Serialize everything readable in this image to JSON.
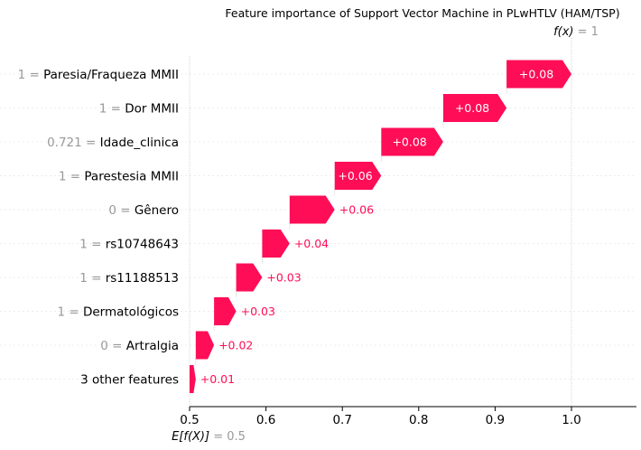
{
  "chart_data": {
    "type": "bar",
    "title": "Feature importance of Support Vector Machine in PLwHTLV (HAM/TSP)",
    "base_value": 0.5,
    "base_label": "E[f(X)]",
    "base_value_text": "0.5",
    "output_value": 1,
    "output_label": "f(x)",
    "output_value_text": "1",
    "xlim": [
      0.5,
      1.085
    ],
    "xticks": [
      0.5,
      0.6,
      0.7,
      0.8,
      0.9,
      1.0
    ],
    "xtick_labels": [
      "0.5",
      "0.6",
      "0.7",
      "0.8",
      "0.9",
      "1.0"
    ],
    "positive_color": "#ff0d57",
    "value_label_color": "#999999",
    "features": [
      {
        "value": "1",
        "name": "Paresia/Fraqueza MMII",
        "contribution": 0.085,
        "label": "+0.08"
      },
      {
        "value": "1",
        "name": "Dor MMII",
        "contribution": 0.083,
        "label": "+0.08"
      },
      {
        "value": "0.721",
        "name": "Idade_clinica",
        "contribution": 0.081,
        "label": "+0.08"
      },
      {
        "value": "1",
        "name": "Parestesia MMII",
        "contribution": 0.061,
        "label": "+0.06"
      },
      {
        "value": "0",
        "name": "Gênero",
        "contribution": 0.059,
        "label": "+0.06"
      },
      {
        "value": "1",
        "name": "rs10748643",
        "contribution": 0.036,
        "label": "+0.04"
      },
      {
        "value": "1",
        "name": "rs11188513",
        "contribution": 0.034,
        "label": "+0.03"
      },
      {
        "value": "1",
        "name": "Dermatológicos",
        "contribution": 0.029,
        "label": "+0.03"
      },
      {
        "value": "0",
        "name": "Artralgia",
        "contribution": 0.024,
        "label": "+0.02"
      },
      {
        "value": "",
        "name": "3 other features",
        "contribution": 0.008,
        "label": "+0.01"
      }
    ]
  }
}
